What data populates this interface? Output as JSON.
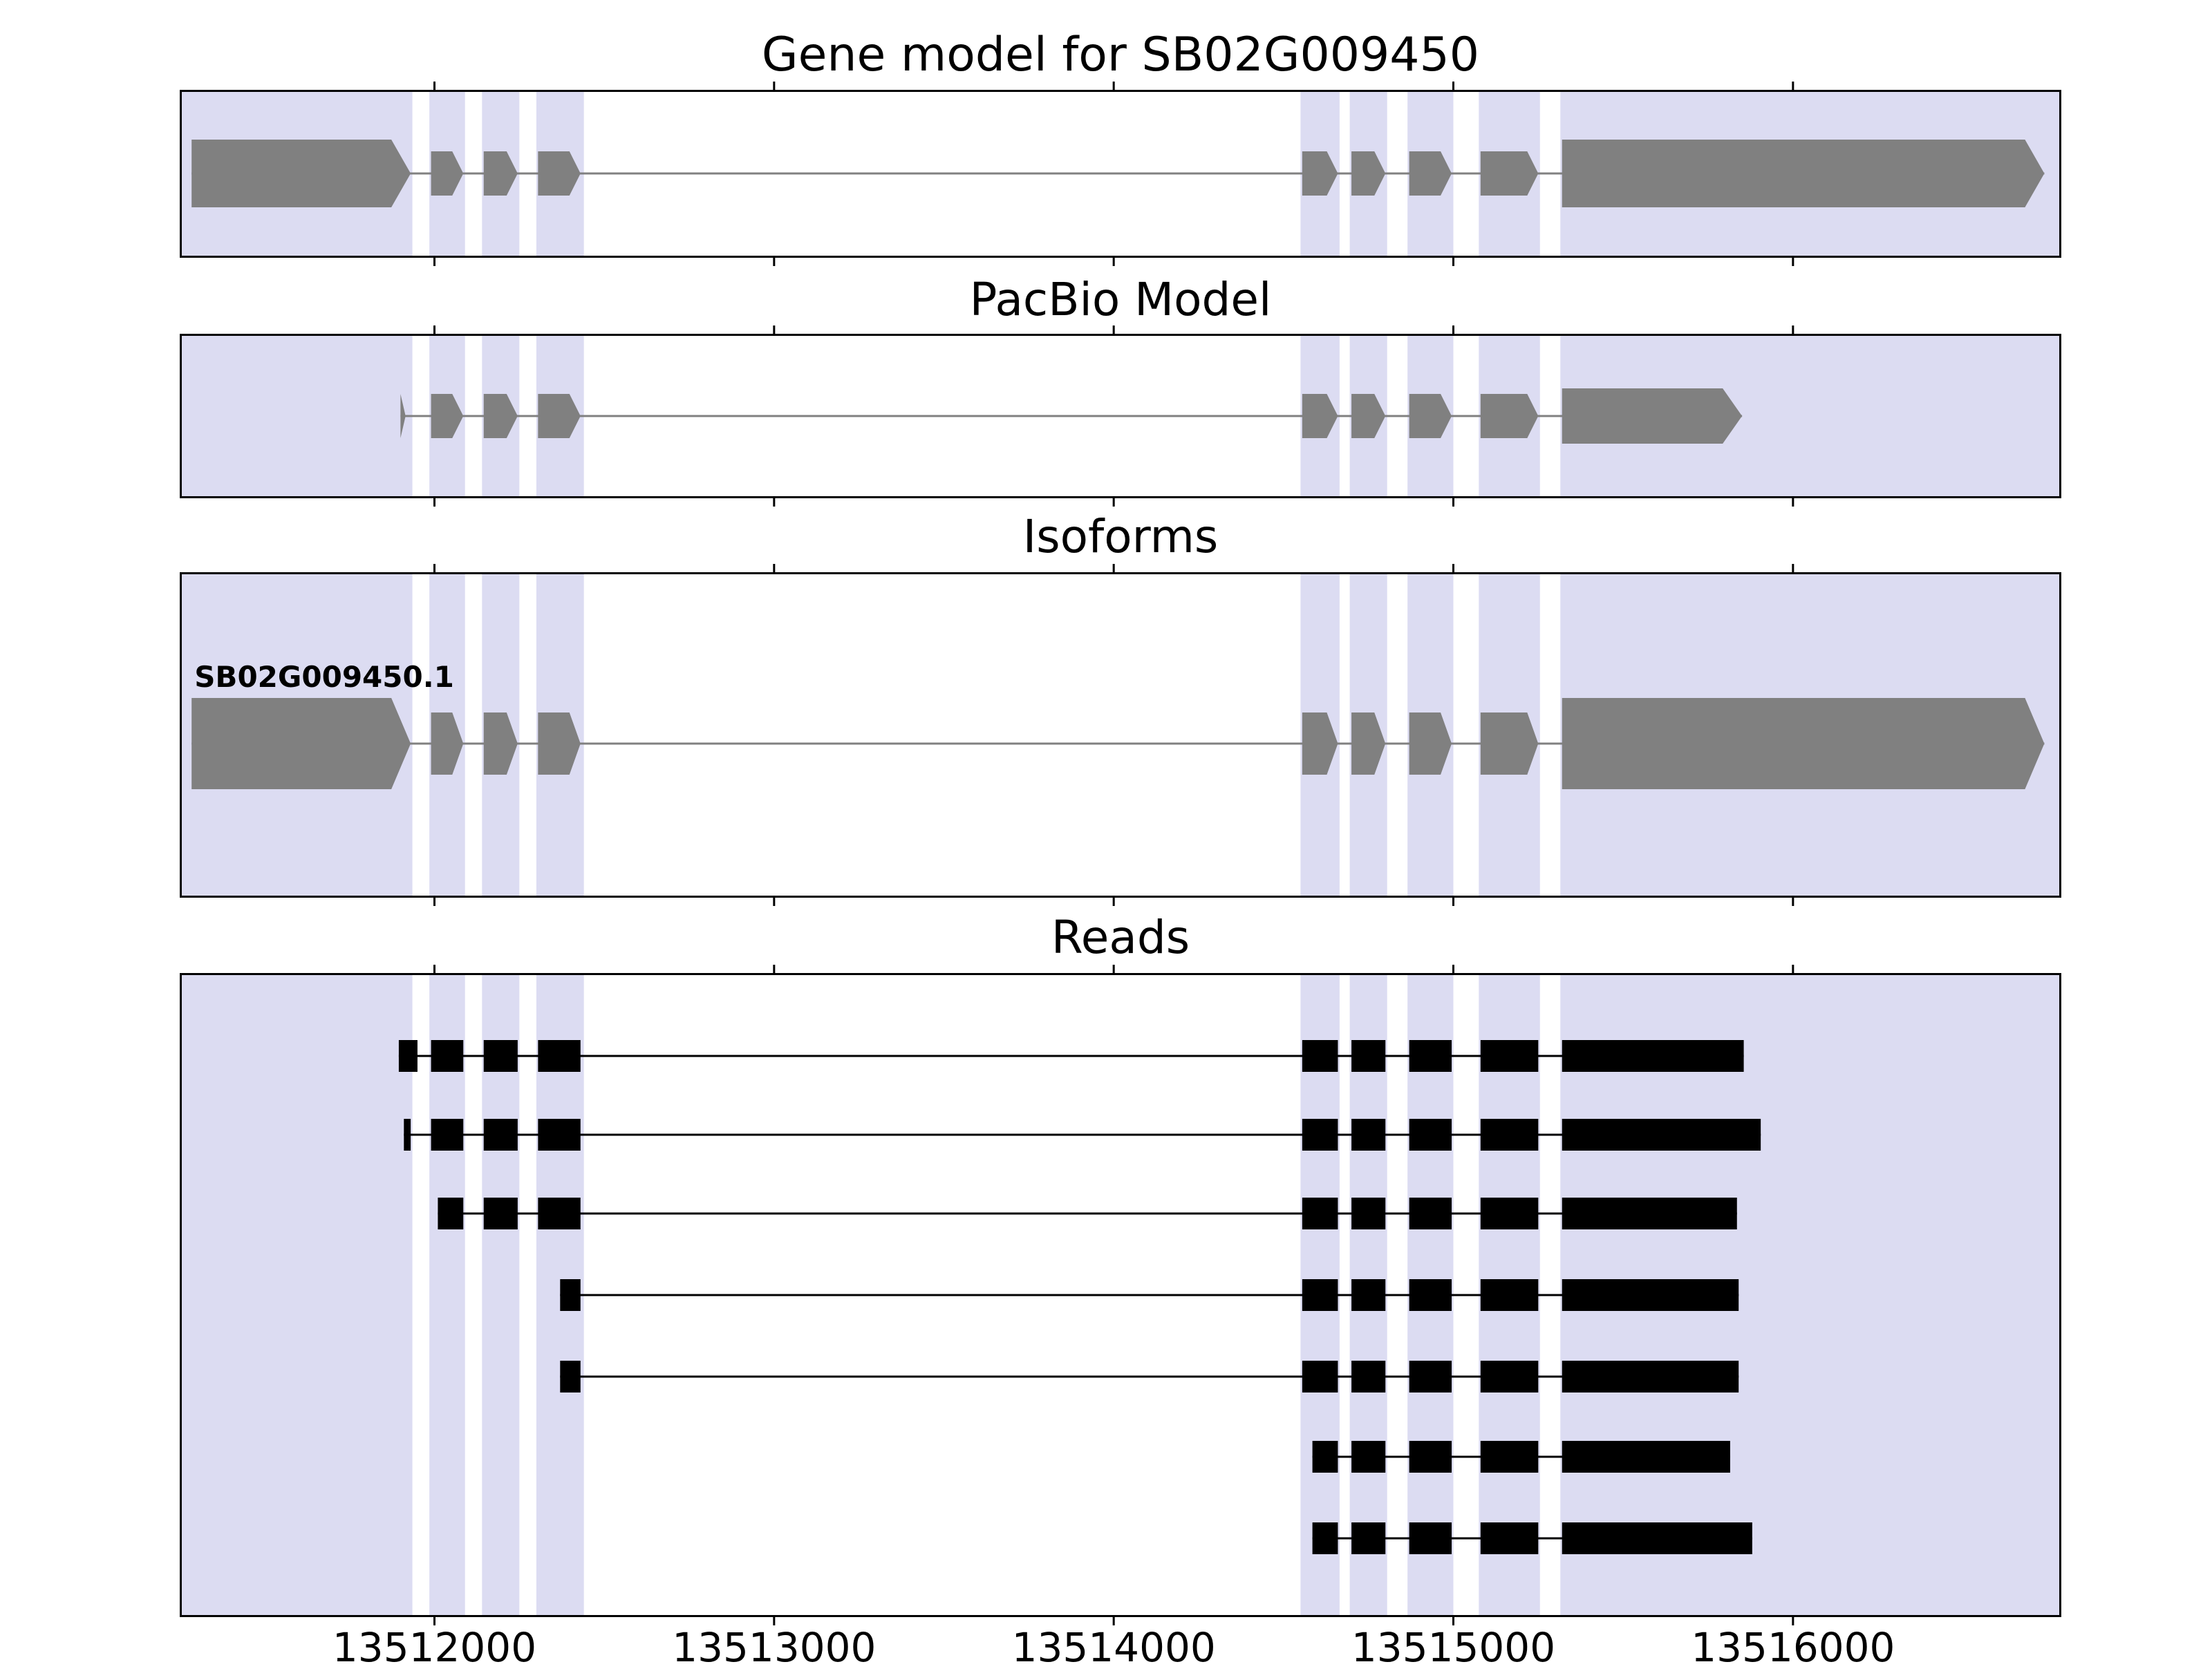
{
  "chart_data": {
    "type": "gene-model-tracks",
    "title": "Gene model for SB02G009450",
    "x_axis": {
      "min": 13511250,
      "max": 13516790,
      "ticks": [
        13512000,
        13513000,
        13514000,
        13515000,
        13516000
      ]
    },
    "colors": {
      "highlight": "#dcdcf2",
      "gene": "#808080",
      "read": "#000000",
      "frame": "#000000",
      "background": "#ffffff"
    },
    "highlight_regions": [
      [
        13511250,
        13511935
      ],
      [
        13511985,
        13512090
      ],
      [
        13512140,
        13512250
      ],
      [
        13512300,
        13512440
      ],
      [
        13514550,
        13514665
      ],
      [
        13514695,
        13514805
      ],
      [
        13514865,
        13515000
      ],
      [
        13515075,
        13515255
      ],
      [
        13515315,
        13516790
      ]
    ],
    "panels": [
      {
        "title": "Gene model for SB02G009450",
        "type": "gene",
        "features": [
          {
            "strand": "+",
            "tall": [
              0,
              8
            ],
            "exons": [
              [
                13511285,
                13511930
              ],
              [
                13511990,
                13512085
              ],
              [
                13512145,
                13512245
              ],
              [
                13512305,
                13512430
              ],
              [
                13514555,
                13514660
              ],
              [
                13514700,
                13514800
              ],
              [
                13514870,
                13514995
              ],
              [
                13515080,
                13515250
              ],
              [
                13515320,
                13516740
              ]
            ]
          }
        ]
      },
      {
        "title": "PacBio Model",
        "type": "gene",
        "features": [
          {
            "strand": "+",
            "tall": [
              8
            ],
            "exons": [
              [
                13511900,
                13511915
              ],
              [
                13511990,
                13512085
              ],
              [
                13512145,
                13512245
              ],
              [
                13512305,
                13512430
              ],
              [
                13514555,
                13514660
              ],
              [
                13514700,
                13514800
              ],
              [
                13514870,
                13514995
              ],
              [
                13515080,
                13515250
              ],
              [
                13515320,
                13515850
              ]
            ]
          }
        ]
      },
      {
        "title": "Isoforms",
        "type": "gene",
        "features": [
          {
            "label": "SB02G009450.1",
            "strand": "+",
            "tall": [
              0,
              8
            ],
            "exons": [
              [
                13511285,
                13511930
              ],
              [
                13511990,
                13512085
              ],
              [
                13512145,
                13512245
              ],
              [
                13512305,
                13512430
              ],
              [
                13514555,
                13514660
              ],
              [
                13514700,
                13514800
              ],
              [
                13514870,
                13514995
              ],
              [
                13515080,
                13515250
              ],
              [
                13515320,
                13516740
              ]
            ]
          }
        ]
      },
      {
        "title": "Reads",
        "type": "reads",
        "reads": [
          {
            "exons": [
              [
                13511895,
                13511950
              ],
              [
                13511990,
                13512085
              ],
              [
                13512145,
                13512245
              ],
              [
                13512305,
                13512430
              ],
              [
                13514555,
                13514660
              ],
              [
                13514700,
                13514800
              ],
              [
                13514870,
                13514995
              ],
              [
                13515080,
                13515250
              ],
              [
                13515320,
                13515855
              ]
            ]
          },
          {
            "exons": [
              [
                13511910,
                13511930
              ],
              [
                13511990,
                13512085
              ],
              [
                13512145,
                13512245
              ],
              [
                13512305,
                13512430
              ],
              [
                13514555,
                13514660
              ],
              [
                13514700,
                13514800
              ],
              [
                13514870,
                13514995
              ],
              [
                13515080,
                13515250
              ],
              [
                13515320,
                13515905
              ]
            ]
          },
          {
            "exons": [
              [
                13512010,
                13512085
              ],
              [
                13512145,
                13512245
              ],
              [
                13512305,
                13512430
              ],
              [
                13514555,
                13514660
              ],
              [
                13514700,
                13514800
              ],
              [
                13514870,
                13514995
              ],
              [
                13515080,
                13515250
              ],
              [
                13515320,
                13515835
              ]
            ]
          },
          {
            "exons": [
              [
                13512370,
                13512430
              ],
              [
                13514555,
                13514660
              ],
              [
                13514700,
                13514800
              ],
              [
                13514870,
                13514995
              ],
              [
                13515080,
                13515250
              ],
              [
                13515320,
                13515840
              ]
            ]
          },
          {
            "exons": [
              [
                13512370,
                13512430
              ],
              [
                13514555,
                13514660
              ],
              [
                13514700,
                13514800
              ],
              [
                13514870,
                13514995
              ],
              [
                13515080,
                13515250
              ],
              [
                13515320,
                13515840
              ]
            ]
          },
          {
            "exons": [
              [
                13514585,
                13514660
              ],
              [
                13514700,
                13514800
              ],
              [
                13514870,
                13514995
              ],
              [
                13515080,
                13515250
              ],
              [
                13515320,
                13515815
              ]
            ]
          },
          {
            "exons": [
              [
                13514585,
                13514660
              ],
              [
                13514700,
                13514800
              ],
              [
                13514870,
                13514995
              ],
              [
                13515080,
                13515250
              ],
              [
                13515320,
                13515880
              ]
            ]
          }
        ]
      }
    ]
  }
}
